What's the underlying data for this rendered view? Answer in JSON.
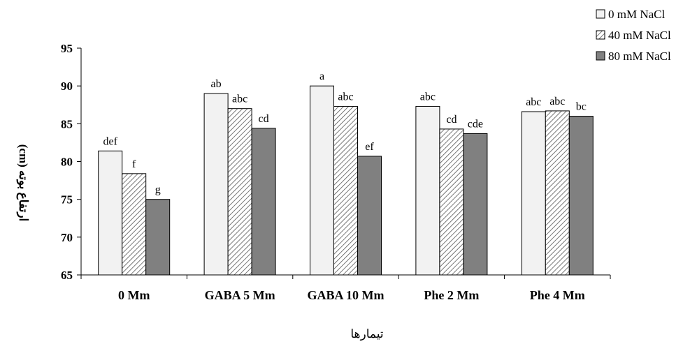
{
  "chart_data": {
    "type": "bar",
    "xlabel": "تیمارها",
    "ylabel": "ارتفاع بوته (cm)",
    "categories": [
      "0 Mm",
      "GABA 5 Mm",
      "GABA 10 Mm",
      "Phe 2 Mm",
      "Phe 4  Mm"
    ],
    "ylim": [
      65,
      95
    ],
    "yticks": [
      "65",
      "70",
      "75",
      "80",
      "85",
      "90",
      "95"
    ],
    "grid": false,
    "legend_position": "top-right",
    "series": [
      {
        "name": "0 mM NaCl",
        "values": [
          81.4,
          89.0,
          90.0,
          87.3,
          86.6
        ],
        "labels": [
          "def",
          "ab",
          "a",
          "abc",
          "abc"
        ],
        "fill": "#f2f2f2"
      },
      {
        "name": "40 mM NaCl",
        "values": [
          78.4,
          87.0,
          87.3,
          84.3,
          86.7
        ],
        "labels": [
          "f",
          "abc",
          "abc",
          "cd",
          "abc"
        ],
        "fill": "hatch"
      },
      {
        "name": "80 mM NaCl",
        "values": [
          75.0,
          84.4,
          80.7,
          83.7,
          86.0
        ],
        "labels": [
          "g",
          "cd",
          "ef",
          "cde",
          "bc"
        ],
        "fill": "#808080"
      }
    ]
  }
}
